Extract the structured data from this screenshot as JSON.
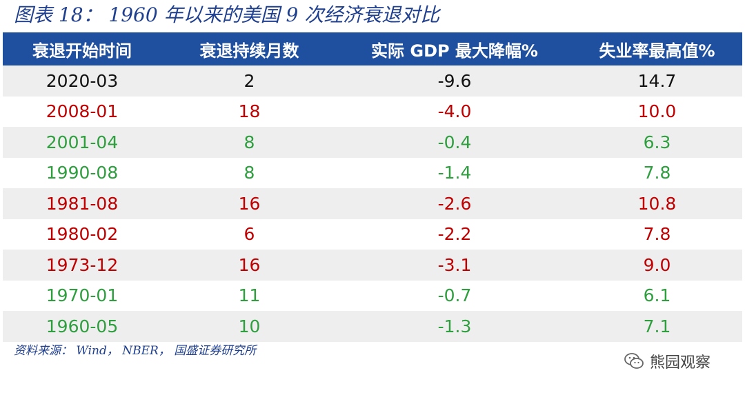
{
  "title": "图表 18： 1960 年以来的美国 9 次经济衰退对比",
  "table": {
    "headers": [
      "衰退开始时间",
      "衰退持续月数",
      "实际 GDP 最大降幅%",
      "失业率最高值%"
    ],
    "rows": [
      {
        "start": "2020-03",
        "months": "2",
        "gdp": "-9.6",
        "unemployment": "14.7",
        "color": "#111111"
      },
      {
        "start": "2008-01",
        "months": "18",
        "gdp": "-4.0",
        "unemployment": "10.0",
        "color": "#c00000"
      },
      {
        "start": "2001-04",
        "months": "8",
        "gdp": "-0.4",
        "unemployment": "6.3",
        "color": "#2e9e3f"
      },
      {
        "start": "1990-08",
        "months": "8",
        "gdp": "-1.4",
        "unemployment": "7.8",
        "color": "#2e9e3f"
      },
      {
        "start": "1981-08",
        "months": "16",
        "gdp": "-2.6",
        "unemployment": "10.8",
        "color": "#c00000"
      },
      {
        "start": "1980-02",
        "months": "6",
        "gdp": "-2.2",
        "unemployment": "7.8",
        "color": "#c00000"
      },
      {
        "start": "1973-12",
        "months": "16",
        "gdp": "-3.1",
        "unemployment": "9.0",
        "color": "#c00000"
      },
      {
        "start": "1970-01",
        "months": "11",
        "gdp": "-0.7",
        "unemployment": "6.1",
        "color": "#2e9e3f"
      },
      {
        "start": "1960-05",
        "months": "10",
        "gdp": "-1.3",
        "unemployment": "7.1",
        "color": "#2e9e3f"
      }
    ]
  },
  "source": "资料来源： Wind， NBER， 国盛证券研究所",
  "watermark": {
    "text": "熊园观察",
    "icon": "wechat-icon"
  },
  "colors": {
    "header_bg": "#1f4f9f",
    "title": "#1f3f8f",
    "shade": "#eeeeee"
  }
}
